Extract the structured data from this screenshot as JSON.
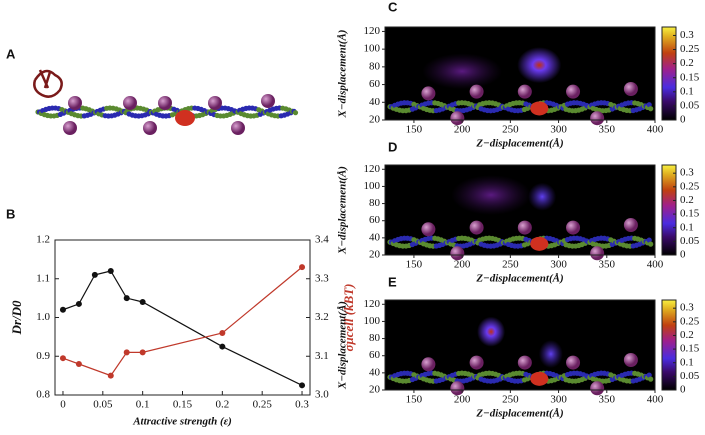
{
  "panel_labels": [
    "A",
    "B",
    "C",
    "D",
    "E"
  ],
  "chart_data": [
    {
      "type": "line",
      "xlabel": "Attractive strength (ε)",
      "ylabel": "Dr/D0",
      "y2label": "σμcell (kBT)",
      "xlim": [
        -0.01,
        0.31
      ],
      "xticks": [
        0,
        0.05,
        0.1,
        0.15,
        0.2,
        0.25,
        0.3
      ],
      "ylim": [
        0.8,
        1.2
      ],
      "yticks": [
        0.8,
        0.9,
        {
          "value": 1,
          "label": "1.0"
        },
        1.1,
        1.2
      ],
      "y2lim": [
        3,
        3.4
      ],
      "y2ticks": [
        {
          "value": 3,
          "label": "3.0"
        },
        3.1,
        3.2,
        3.3,
        3.4
      ],
      "series": [
        {
          "color": "#111111",
          "x": [
            0,
            0.02,
            0.04,
            0.06,
            0.08,
            0.1,
            0.2,
            0.3
          ],
          "values": [
            1.02,
            1.035,
            1.11,
            1.12,
            1.05,
            1.04,
            0.925,
            0.825
          ]
        },
        {
          "color": "#c0392b",
          "axis": "y2",
          "x": [
            0,
            0.02,
            0.06,
            0.08,
            0.1,
            0.2,
            0.3
          ],
          "values": [
            3.095,
            3.08,
            3.05,
            3.11,
            3.11,
            3.16,
            3.33
          ]
        }
      ]
    },
    {
      "type": "heatmap",
      "xlabel": "Z−displacement(Å)",
      "ylabel": "X−displacement(Å)",
      "xlim": [
        120,
        400
      ],
      "xticks": [
        150,
        200,
        250,
        300,
        350,
        400
      ],
      "ylim": [
        20,
        125
      ],
      "yticks": [
        20,
        40,
        60,
        80,
        100,
        120
      ],
      "clim": [
        0,
        0.33
      ],
      "cticks": [
        0,
        0.05,
        0.1,
        0.15,
        0.2,
        0.25,
        0.3
      ]
    },
    {
      "type": "heatmap",
      "xlabel": "Z−displacement(Å)",
      "ylabel": "X−displacement(Å)",
      "xlim": [
        120,
        400
      ],
      "xticks": [
        150,
        200,
        250,
        300,
        350,
        400
      ],
      "ylim": [
        20,
        125
      ],
      "yticks": [
        20,
        40,
        60,
        80,
        100,
        120
      ],
      "clim": [
        0,
        0.33
      ],
      "cticks": [
        0,
        0.05,
        0.1,
        0.15,
        0.2,
        0.25,
        0.3
      ]
    },
    {
      "type": "heatmap",
      "xlabel": "Z−displacement(Å)",
      "ylabel": "X−displacement(Å)",
      "xlim": [
        120,
        400
      ],
      "xticks": [
        150,
        200,
        250,
        300,
        350,
        400
      ],
      "ylim": [
        20,
        125
      ],
      "yticks": [
        20,
        40,
        60,
        80,
        100,
        120
      ],
      "clim": [
        0,
        0.33
      ],
      "cticks": [
        0,
        0.05,
        0.1,
        0.15,
        0.2,
        0.25,
        0.3
      ]
    }
  ]
}
